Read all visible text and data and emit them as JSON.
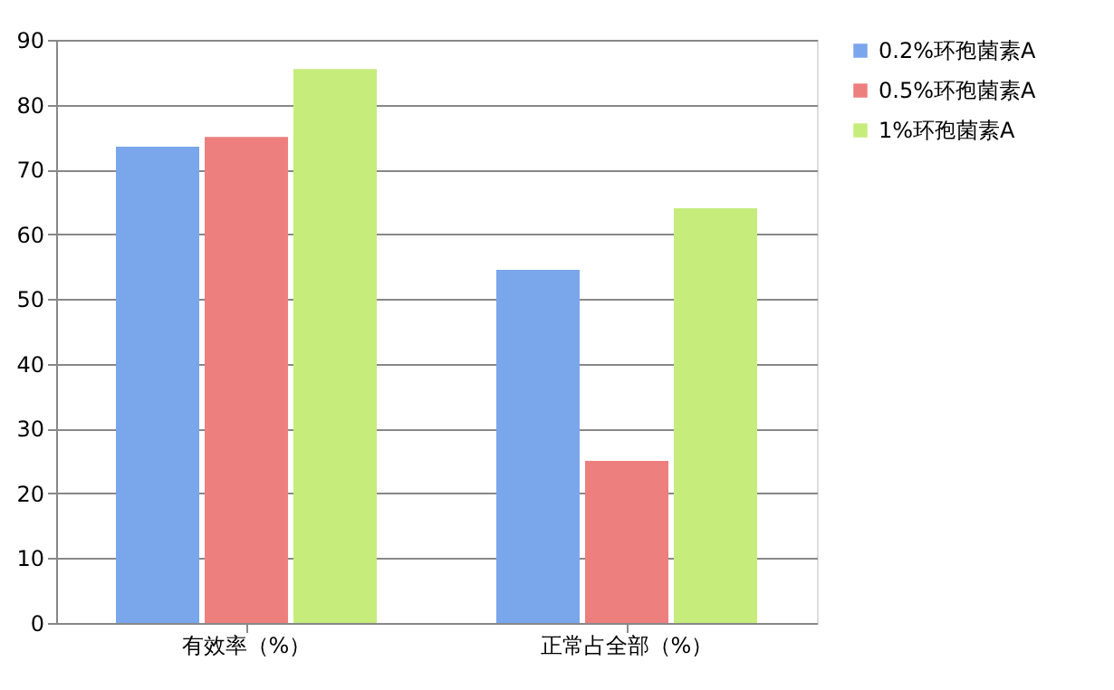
{
  "chart_data": {
    "type": "bar",
    "categories": [
      "有效率（%）",
      "正常占全部（%）"
    ],
    "series": [
      {
        "name": "0.2%环孢菌素A",
        "color": "#7aa6ec",
        "values": [
          73.5,
          54.5
        ]
      },
      {
        "name": "0.5%环孢菌素A",
        "color": "#ee7f7f",
        "values": [
          75,
          25
        ]
      },
      {
        "name": "1%环孢菌素A",
        "color": "#c6ec7c",
        "values": [
          85.5,
          64
        ]
      }
    ],
    "ylim": [
      0,
      90
    ],
    "yticks": [
      0,
      10,
      20,
      30,
      40,
      50,
      60,
      70,
      80,
      90
    ],
    "grid": "y",
    "legend": "right"
  }
}
